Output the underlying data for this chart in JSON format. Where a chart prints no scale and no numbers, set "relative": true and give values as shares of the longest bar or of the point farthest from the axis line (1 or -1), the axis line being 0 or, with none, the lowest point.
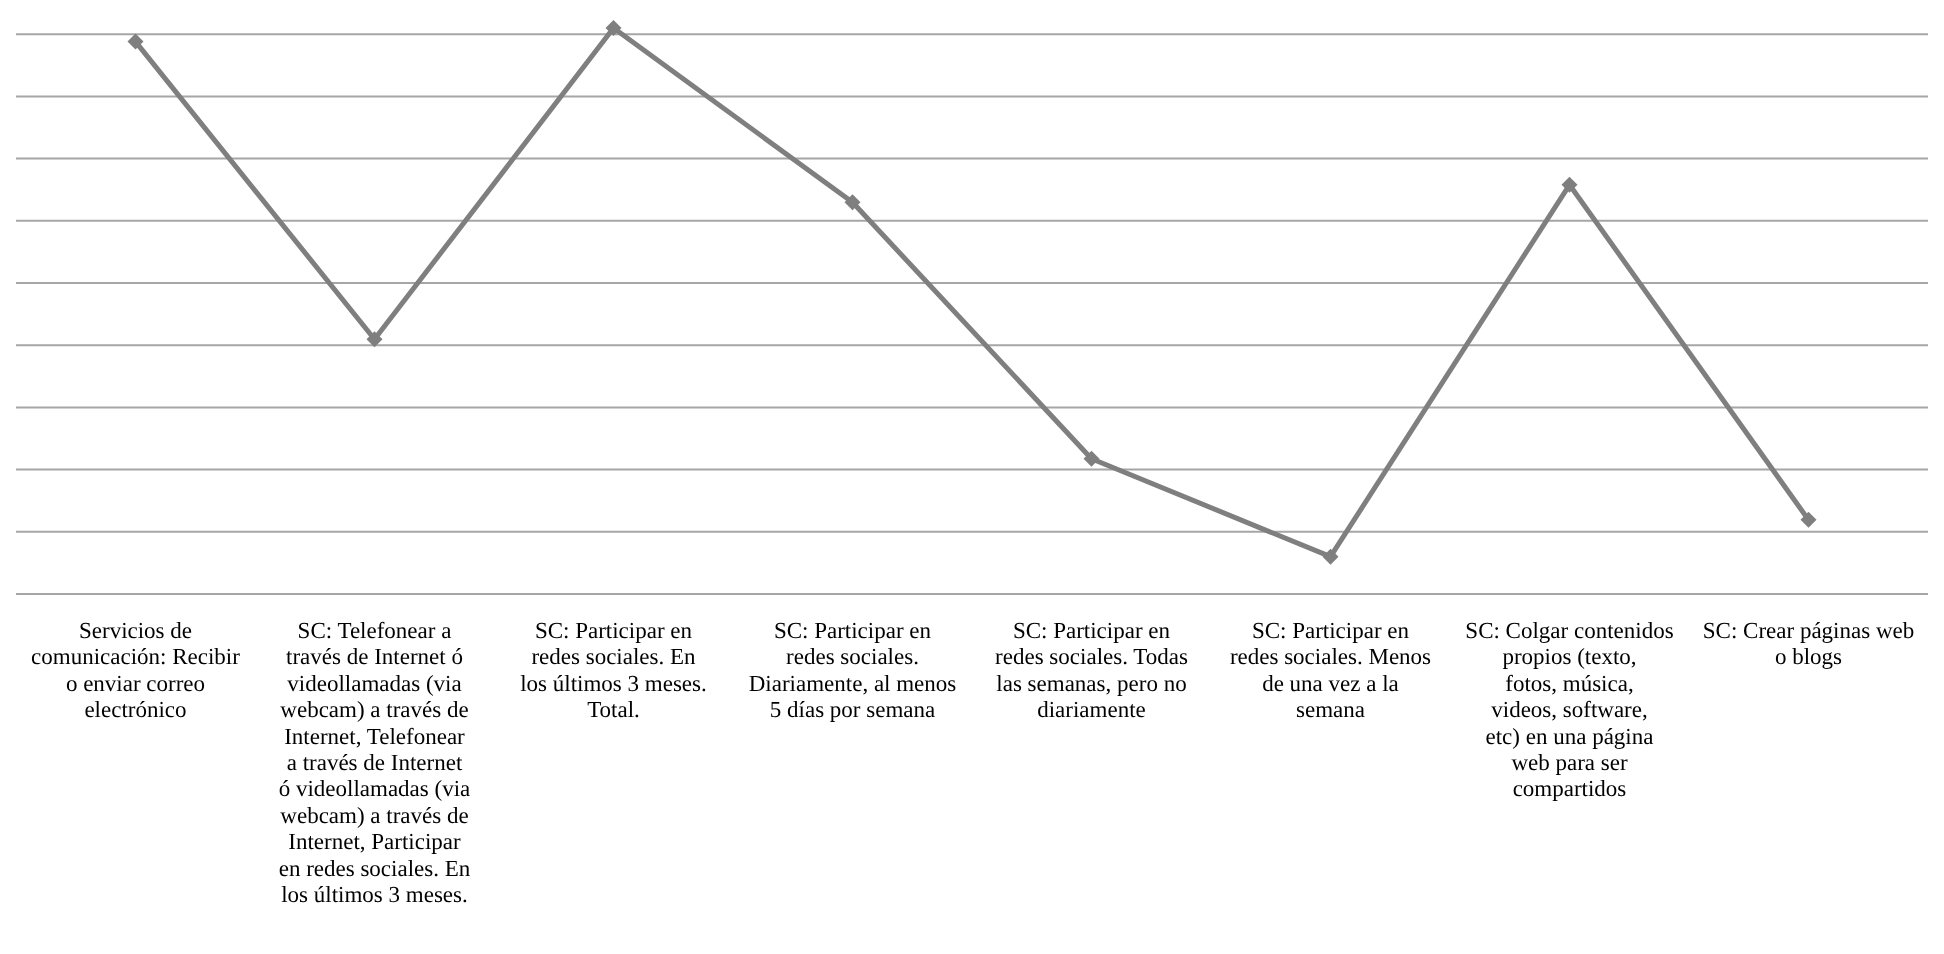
{
  "chart_data": {
    "type": "line",
    "relative": true,
    "grid": "y",
    "marker": "diamond",
    "line_style": "solid",
    "categories": [
      "Servicios de comunicación: Recibir o enviar correo electrónico",
      "SC: Telefonear a través de Internet ó videollamadas (via webcam) a través de Internet, Telefonear a través de Internet ó videollamadas (via webcam) a través de Internet, Participar en redes sociales. En los últimos 3 meses.",
      "SC: Participar en redes sociales. En los últimos 3 meses. Total.",
      "SC: Participar en redes sociales. Diariamente, al menos 5 días por semana",
      "SC: Participar en redes sociales. Todas las semanas, pero no diariamente",
      "SC: Participar en redes sociales. Menos de una vez a la semana",
      "SC: Colgar contenidos propios (texto, fotos, música, videos, software, etc) en una página web para ser compartidos",
      "SC: Crear páginas web o blogs"
    ],
    "series": [
      {
        "color": "#7f7f7f",
        "values": [
          0.976,
          0.45,
          1,
          0.692,
          0.239,
          0.066,
          0.723,
          0.131
        ]
      }
    ]
  }
}
